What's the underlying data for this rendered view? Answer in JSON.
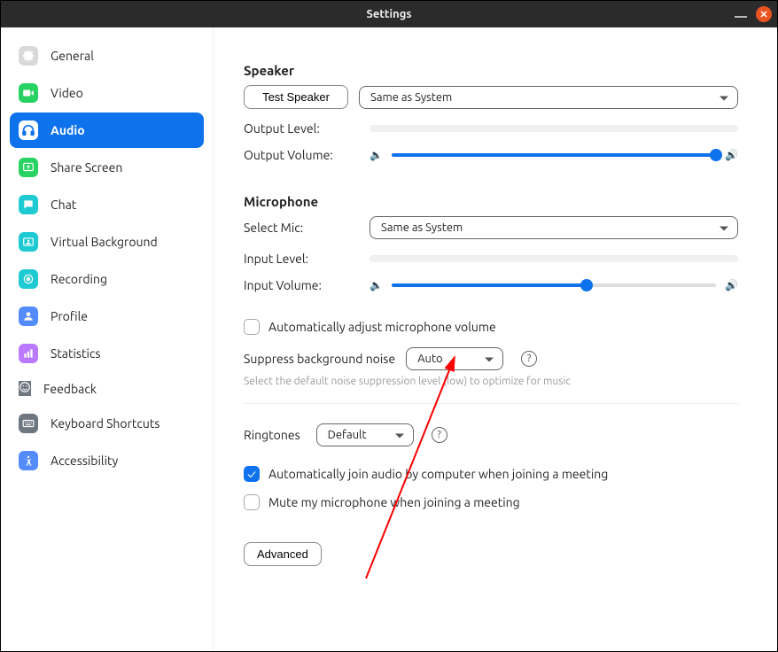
{
  "window": {
    "title": "Settings"
  },
  "sidebar": {
    "items": [
      {
        "label": "General",
        "icon": "gear",
        "icon_bg": "#d9d9d9",
        "active": false
      },
      {
        "label": "Video",
        "icon": "video",
        "icon_bg": "#29d363",
        "active": false
      },
      {
        "label": "Audio",
        "icon": "audio",
        "icon_bg": "#ffffff",
        "active": true
      },
      {
        "label": "Share Screen",
        "icon": "share",
        "icon_bg": "#29d363",
        "active": false
      },
      {
        "label": "Chat",
        "icon": "chat",
        "icon_bg": "#1fcad3",
        "active": false
      },
      {
        "label": "Virtual Background",
        "icon": "vb",
        "icon_bg": "#1fcad3",
        "active": false
      },
      {
        "label": "Recording",
        "icon": "rec",
        "icon_bg": "#1fcad3",
        "active": false
      },
      {
        "label": "Profile",
        "icon": "profile",
        "icon_bg": "#548cff",
        "active": false
      },
      {
        "label": "Statistics",
        "icon": "stats",
        "icon_bg": "#b97aff",
        "active": false
      },
      {
        "label": "Feedback",
        "icon": "fb",
        "icon_bg": "#6e7680",
        "active": false
      },
      {
        "label": "Keyboard Shortcuts",
        "icon": "kb",
        "icon_bg": "#6e7680",
        "active": false
      },
      {
        "label": "Accessibility",
        "icon": "acc",
        "icon_bg": "#548cff",
        "active": false
      }
    ]
  },
  "speaker": {
    "title": "Speaker",
    "test_btn": "Test Speaker",
    "device": "Same as System",
    "output_level_label": "Output Level:",
    "output_volume_label": "Output Volume:",
    "output_volume_pct": 100
  },
  "microphone": {
    "title": "Microphone",
    "select_label": "Select Mic:",
    "device": "Same as System",
    "input_level_label": "Input Level:",
    "input_volume_label": "Input Volume:",
    "input_volume_pct": 60,
    "auto_adjust_label": "Automatically adjust microphone volume",
    "auto_adjust_checked": false,
    "suppress_label": "Suppress background noise",
    "suppress_value": "Auto",
    "suppress_help": "Select the default noise suppression level (low) to optimize for music"
  },
  "ringtones": {
    "label": "Ringtones",
    "value": "Default"
  },
  "options": {
    "auto_join": {
      "label": "Automatically join audio by computer when joining a meeting",
      "checked": true
    },
    "mute_on_join": {
      "label": "Mute my microphone when joining a meeting",
      "checked": false
    }
  },
  "advanced_btn": "Advanced",
  "colors": {
    "accent": "#0e72ed",
    "track": "#dddddd",
    "muted": "#9a9a9a"
  },
  "annotation": {
    "arrow_color": "#ff0000"
  }
}
